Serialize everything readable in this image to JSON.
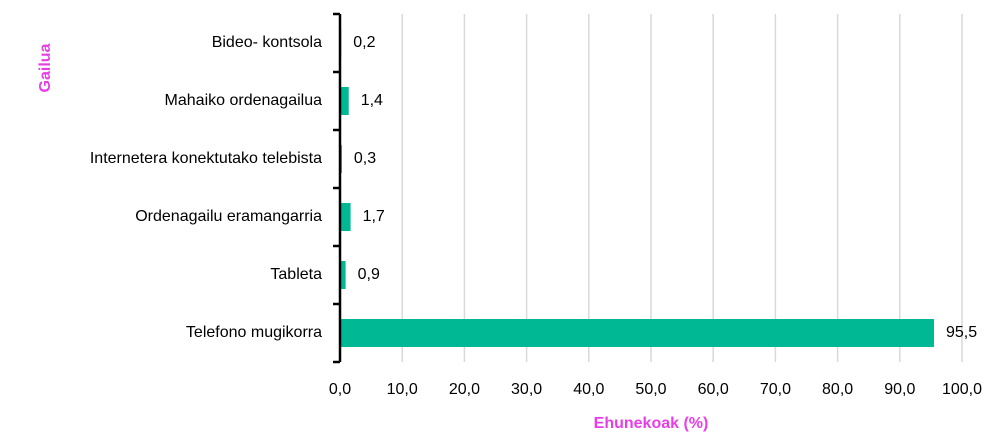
{
  "chart_data": {
    "type": "barh",
    "categories": [
      "Bideo- kontsola",
      "Mahaiko ordenagailua",
      "Internetera konektutako telebista",
      "Ordenagailu eramangarria",
      "Tableta",
      "Telefono mugikorra"
    ],
    "values": [
      0.2,
      1.4,
      0.3,
      1.7,
      0.9,
      95.5
    ],
    "value_labels": [
      "0,2",
      "1,4",
      "0,3",
      "1,7",
      "0,9",
      "95,5"
    ],
    "color": "#00b894",
    "xlabel": "Ehunekoak (%)",
    "ylabel": "Gailua",
    "xlim": [
      0,
      100
    ],
    "xticks": [
      {
        "value": 0,
        "label": "0,0"
      },
      {
        "value": 10,
        "label": "10,0"
      },
      {
        "value": 20,
        "label": "20,0"
      },
      {
        "value": 30,
        "label": "30,0"
      },
      {
        "value": 40,
        "label": "40,0"
      },
      {
        "value": 50,
        "label": "50,0"
      },
      {
        "value": 60,
        "label": "60,0"
      },
      {
        "value": 70,
        "label": "70,0"
      },
      {
        "value": 80,
        "label": "80,0"
      },
      {
        "value": 90,
        "label": "90,0"
      },
      {
        "value": 100,
        "label": "100,0"
      }
    ],
    "grid": true
  }
}
